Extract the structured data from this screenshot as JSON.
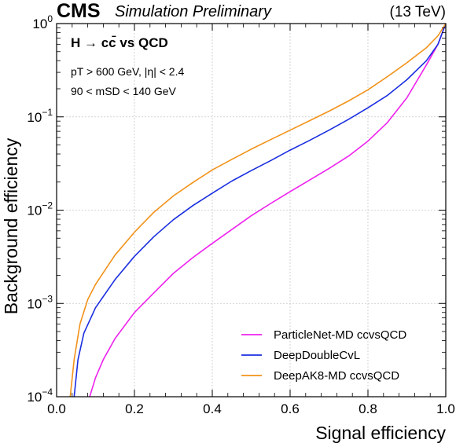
{
  "header": {
    "experiment": "CMS",
    "status": "Simulation Preliminary",
    "energy": "(13 TeV)"
  },
  "annotations": {
    "process_title": "H → cc̄ vs QCD",
    "cut_pt": "pT > 600 GeV,  |η| < 2.4",
    "cut_msd": "90 < mSD < 140 GeV"
  },
  "chart_data": {
    "type": "line",
    "xlabel": "Signal efficiency",
    "ylabel": "Background efficiency",
    "xlim": [
      0.0,
      1.0
    ],
    "ylim": [
      0.0001,
      1
    ],
    "yscale": "log",
    "grid": true,
    "legend_position": "bottom-right",
    "x_ticks": [
      "0.0",
      "0.2",
      "0.4",
      "0.6",
      "0.8",
      "1.0"
    ],
    "y_ticks": [
      "10^-4",
      "10^-3",
      "10^-2",
      "10^-1",
      "10^0"
    ],
    "series": [
      {
        "name": "ParticleNet-MD ccvsQCD",
        "color": "#ee22ee",
        "x": [
          0.085,
          0.1,
          0.12,
          0.15,
          0.2,
          0.25,
          0.3,
          0.35,
          0.4,
          0.45,
          0.5,
          0.55,
          0.6,
          0.65,
          0.7,
          0.75,
          0.8,
          0.85,
          0.9,
          0.95,
          0.98,
          1.0
        ],
        "y": [
          0.0001,
          0.00016,
          0.00025,
          0.00042,
          0.0008,
          0.0013,
          0.0021,
          0.0031,
          0.0044,
          0.0062,
          0.0087,
          0.0118,
          0.0158,
          0.021,
          0.028,
          0.038,
          0.055,
          0.087,
          0.16,
          0.36,
          0.6,
          1.0
        ]
      },
      {
        "name": "DeepDoubleCvL",
        "color": "#1a2ee0",
        "x": [
          0.045,
          0.055,
          0.07,
          0.1,
          0.15,
          0.2,
          0.25,
          0.3,
          0.35,
          0.4,
          0.45,
          0.5,
          0.55,
          0.6,
          0.65,
          0.7,
          0.75,
          0.8,
          0.85,
          0.9,
          0.95,
          0.98,
          1.0
        ],
        "y": [
          0.0001,
          0.00025,
          0.00048,
          0.0009,
          0.0018,
          0.0032,
          0.0052,
          0.0079,
          0.0112,
          0.0152,
          0.0205,
          0.0265,
          0.034,
          0.044,
          0.056,
          0.072,
          0.094,
          0.125,
          0.17,
          0.25,
          0.4,
          0.6,
          1.0
        ]
      },
      {
        "name": "DeepAK8-MD ccvsQCD",
        "color": "#f2921a",
        "x": [
          0.035,
          0.045,
          0.06,
          0.08,
          0.1,
          0.15,
          0.2,
          0.25,
          0.3,
          0.35,
          0.4,
          0.45,
          0.5,
          0.55,
          0.6,
          0.65,
          0.7,
          0.75,
          0.8,
          0.85,
          0.9,
          0.95,
          0.98,
          1.0
        ],
        "y": [
          0.0001,
          0.00025,
          0.0006,
          0.0011,
          0.0016,
          0.0033,
          0.0058,
          0.0095,
          0.0142,
          0.0198,
          0.027,
          0.035,
          0.045,
          0.057,
          0.072,
          0.091,
          0.115,
          0.148,
          0.195,
          0.27,
          0.38,
          0.55,
          0.74,
          1.0
        ]
      }
    ]
  }
}
